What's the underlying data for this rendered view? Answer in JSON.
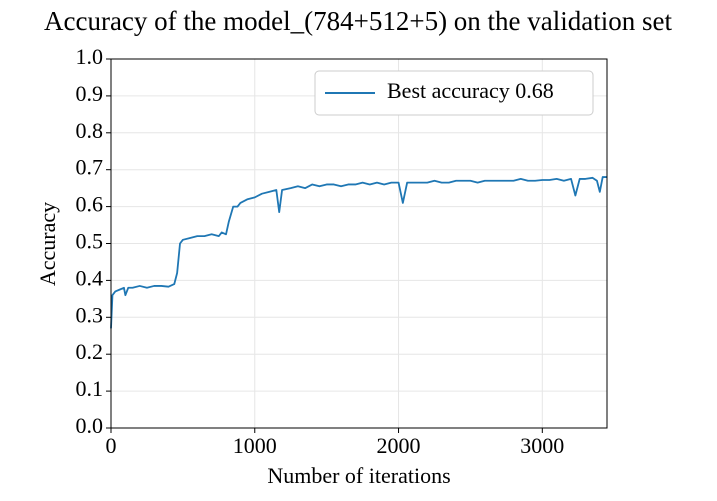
{
  "chart_data": {
    "type": "line",
    "title": "Accuracy of the model_(784+512+5) on the validation set",
    "xlabel": "Number of iterations",
    "ylabel": "Accuracy",
    "x": [
      0,
      10,
      30,
      60,
      90,
      100,
      120,
      150,
      200,
      250,
      300,
      350,
      400,
      440,
      460,
      480,
      500,
      550,
      600,
      650,
      700,
      750,
      770,
      800,
      820,
      850,
      880,
      900,
      950,
      1000,
      1050,
      1100,
      1150,
      1170,
      1190,
      1250,
      1300,
      1350,
      1400,
      1450,
      1500,
      1550,
      1600,
      1650,
      1700,
      1750,
      1800,
      1850,
      1900,
      1950,
      2000,
      2030,
      2060,
      2100,
      2150,
      2200,
      2250,
      2300,
      2350,
      2400,
      2450,
      2500,
      2550,
      2600,
      2650,
      2700,
      2750,
      2800,
      2850,
      2900,
      2950,
      3000,
      3050,
      3100,
      3150,
      3200,
      3230,
      3260,
      3300,
      3350,
      3380,
      3400,
      3420,
      3450
    ],
    "series": [
      {
        "name": "Best accuracy 0.68",
        "color": "#1f77b4",
        "values": [
          0.27,
          0.36,
          0.37,
          0.375,
          0.38,
          0.36,
          0.38,
          0.38,
          0.385,
          0.38,
          0.385,
          0.385,
          0.383,
          0.39,
          0.42,
          0.5,
          0.51,
          0.515,
          0.52,
          0.52,
          0.525,
          0.52,
          0.53,
          0.525,
          0.56,
          0.6,
          0.6,
          0.61,
          0.62,
          0.625,
          0.635,
          0.64,
          0.645,
          0.585,
          0.645,
          0.65,
          0.655,
          0.65,
          0.66,
          0.655,
          0.66,
          0.66,
          0.655,
          0.66,
          0.66,
          0.665,
          0.66,
          0.665,
          0.66,
          0.665,
          0.665,
          0.61,
          0.665,
          0.665,
          0.665,
          0.665,
          0.67,
          0.665,
          0.665,
          0.67,
          0.67,
          0.67,
          0.665,
          0.67,
          0.67,
          0.67,
          0.67,
          0.67,
          0.675,
          0.67,
          0.67,
          0.672,
          0.672,
          0.675,
          0.67,
          0.675,
          0.63,
          0.675,
          0.675,
          0.678,
          0.67,
          0.64,
          0.68,
          0.68
        ]
      }
    ],
    "xlim": [
      0,
      3450
    ],
    "xticks": [
      0,
      1000,
      2000,
      3000
    ],
    "ylim": [
      0,
      1
    ],
    "yticks": [
      {
        "value": 0,
        "label": "0.0"
      },
      0.1,
      0.2,
      0.3,
      0.4,
      0.5,
      0.6,
      0.7,
      0.8,
      0.9,
      {
        "value": 1,
        "label": "1.0"
      }
    ],
    "grid": true,
    "legend": "upper right"
  }
}
